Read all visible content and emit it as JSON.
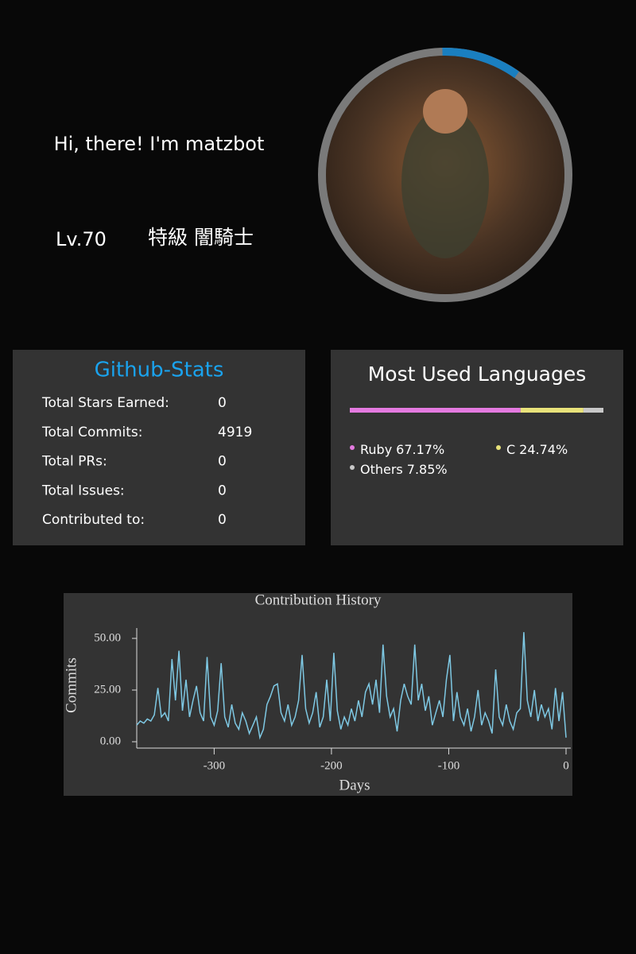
{
  "profile": {
    "greeting": "Hi, there! I'm matzbot",
    "level": "Lv.70",
    "rank": "特級 闇騎士"
  },
  "stats": {
    "title": "Github-Stats",
    "rows": [
      {
        "label": "Total Stars Earned:",
        "value": 0
      },
      {
        "label": "Total Commits:",
        "value": 4919
      },
      {
        "label": "Total PRs:",
        "value": 0
      },
      {
        "label": "Total Issues:",
        "value": 0
      },
      {
        "label": "Contributed to:",
        "value": 0
      }
    ]
  },
  "languages": {
    "title": "Most Used Languages",
    "items": [
      {
        "name": "Ruby",
        "value": 67.17,
        "value_label": "67.17%",
        "color": "#e47ae0"
      },
      {
        "name": "C",
        "value": 24.74,
        "value_label": "24.74%",
        "color": "#e8e27a"
      },
      {
        "name": "Others",
        "value": 7.85,
        "value_label": "7.85%",
        "color": "#c8c8c8"
      }
    ]
  },
  "chart_data": {
    "type": "line",
    "title": "Contribution History",
    "x_label": "Days",
    "y_label": "Commits",
    "x": [
      -366,
      -363,
      -360,
      -357,
      -354,
      -351,
      -348,
      -345,
      -342,
      -339,
      -336,
      -333,
      -330,
      -327,
      -324,
      -321,
      -318,
      -315,
      -312,
      -309,
      -306,
      -303,
      -300,
      -297,
      -294,
      -291,
      -288,
      -285,
      -282,
      -279,
      -276,
      -273,
      -270,
      -267,
      -264,
      -261,
      -258,
      -255,
      -252,
      -249,
      -246,
      -243,
      -240,
      -237,
      -234,
      -231,
      -228,
      -225,
      -222,
      -219,
      -216,
      -213,
      -210,
      -207,
      -204,
      -201,
      -198,
      -195,
      -192,
      -189,
      -186,
      -183,
      -180,
      -177,
      -174,
      -171,
      -168,
      -165,
      -162,
      -159,
      -156,
      -153,
      -150,
      -147,
      -144,
      -141,
      -138,
      -135,
      -132,
      -129,
      -126,
      -123,
      -120,
      -117,
      -114,
      -111,
      -108,
      -105,
      -102,
      -99,
      -96,
      -93,
      -90,
      -87,
      -84,
      -81,
      -78,
      -75,
      -72,
      -69,
      -66,
      -63,
      -60,
      -57,
      -54,
      -51,
      -48,
      -45,
      -42,
      -39,
      -36,
      -33,
      -30,
      -27,
      -24,
      -21,
      -18,
      -15,
      -12,
      -9,
      -6,
      -3,
      0
    ],
    "series": [
      {
        "name": "Commits",
        "color": "#7ec8e3",
        "values": [
          8,
          10,
          9,
          11,
          10,
          13,
          26,
          12,
          14,
          10,
          40,
          20,
          44,
          15,
          30,
          12,
          20,
          27,
          14,
          10,
          41,
          12,
          8,
          15,
          38,
          12,
          7,
          18,
          9,
          6,
          14,
          10,
          4,
          8,
          12,
          2,
          6,
          18,
          22,
          27,
          28,
          14,
          10,
          18,
          8,
          12,
          20,
          42,
          16,
          9,
          14,
          24,
          7,
          12,
          30,
          10,
          43,
          15,
          6,
          12,
          8,
          16,
          10,
          20,
          12,
          24,
          28,
          18,
          30,
          14,
          47,
          22,
          12,
          16,
          5,
          20,
          28,
          22,
          18,
          47,
          20,
          28,
          15,
          22,
          8,
          14,
          20,
          12,
          30,
          42,
          10,
          24,
          12,
          8,
          16,
          5,
          12,
          25,
          8,
          14,
          10,
          4,
          35,
          12,
          8,
          18,
          10,
          6,
          14,
          16,
          53,
          20,
          12,
          25,
          10,
          18,
          12,
          16,
          6,
          26,
          10,
          24,
          2
        ]
      }
    ],
    "xlim": [
      -366,
      0
    ],
    "ylim": [
      0,
      55
    ],
    "xticks": [
      -300,
      -200,
      -100,
      0
    ],
    "yticks": [
      {
        "value": 0,
        "label": "0.00"
      },
      {
        "value": 25,
        "label": "25.00"
      },
      {
        "value": 50,
        "label": "50.00"
      }
    ]
  }
}
